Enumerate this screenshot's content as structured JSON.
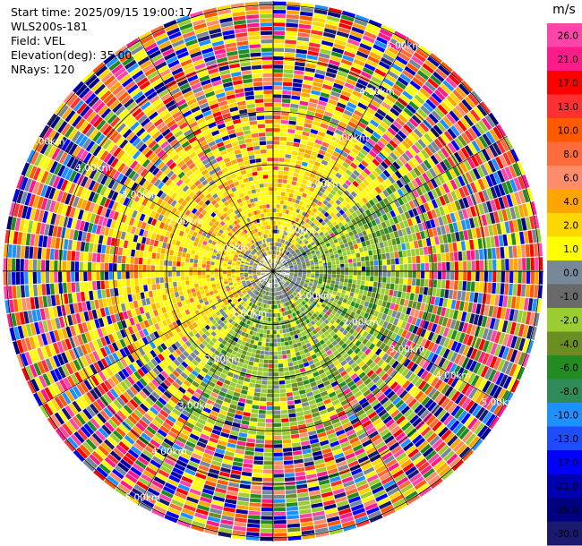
{
  "meta": {
    "start_time": "Start time: 2025/09/15 19:00:17",
    "instrument": "WLS200s-181",
    "field": "Field: VEL",
    "elevation": "Elevation(deg): 35.00",
    "nrays": "NRays: 120"
  },
  "chart_data": {
    "type": "heatmap",
    "projection": "polar",
    "field": "VEL",
    "n_rays": 120,
    "range_rings_km": [
      "1.00km",
      "2.00km",
      "3.00km",
      "4.00km",
      "5.00km"
    ],
    "grid": true,
    "legend": "right",
    "colorbar": {
      "unit": "m/s",
      "ticks": [
        "26.0",
        "21.0",
        "17.0",
        "13.0",
        "10.0",
        "8.0",
        "6.0",
        "4.0",
        "2.0",
        "1.0",
        "0.0",
        "-1.0",
        "-2.0",
        "-4.0",
        "-6.0",
        "-8.0",
        "-10.0",
        "-13.0",
        "-17.0",
        "-21.0",
        "-26.0",
        "-30.0"
      ],
      "colors": [
        "#ff44aa",
        "#ff1a8c",
        "#ff0000",
        "#ff3030",
        "#ff5a00",
        "#ff6a3a",
        "#ff8c6a",
        "#ffa500",
        "#ffd700",
        "#ffff00",
        "#778899",
        "#696969",
        "#9acd32",
        "#6b8e23",
        "#228b22",
        "#2e8b57",
        "#1e90ff",
        "#1e4cff",
        "#0000ff",
        "#0000b0",
        "#000080",
        "#191970"
      ]
    }
  }
}
